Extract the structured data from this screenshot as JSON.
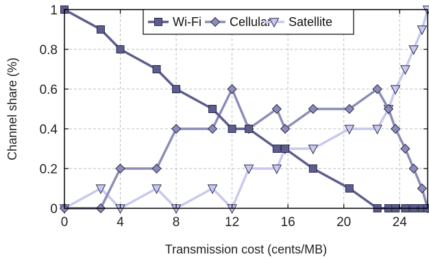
{
  "chart_data": {
    "type": "line",
    "xlabel": "Transmission cost (cents/MB)",
    "ylabel": "Channel share (%)",
    "xlim": [
      0,
      26
    ],
    "ylim": [
      0,
      1
    ],
    "xticks": [
      0,
      4,
      8,
      12,
      16,
      20,
      24
    ],
    "yticks": [
      0,
      0.2,
      0.4,
      0.6,
      0.8,
      1
    ],
    "grid": true,
    "legend": "top-center",
    "series": [
      {
        "name": "Wi-Fi",
        "marker": "square",
        "color": "#5c5c8e",
        "x": [
          0,
          2.6,
          4,
          6.6,
          8,
          10.6,
          12,
          13.2,
          15.2,
          15.8,
          17.8,
          20.4,
          22.4,
          23.2,
          23.7,
          24.4,
          25,
          25.6,
          26
        ],
        "y": [
          1,
          0.9,
          0.8,
          0.7,
          0.6,
          0.5,
          0.4,
          0.4,
          0.3,
          0.3,
          0.2,
          0.1,
          0,
          0,
          0,
          0,
          0,
          0,
          0
        ]
      },
      {
        "name": "Cellular",
        "marker": "diamond",
        "color": "#8c8cb8",
        "x": [
          0,
          2.6,
          4,
          6.6,
          8,
          10.6,
          12,
          13.2,
          15.2,
          15.8,
          17.8,
          20.4,
          22.4,
          23.2,
          23.7,
          24.4,
          25,
          25.6,
          26
        ],
        "y": [
          0,
          0,
          0.2,
          0.2,
          0.4,
          0.4,
          0.6,
          0.4,
          0.5,
          0.4,
          0.5,
          0.5,
          0.6,
          0.5,
          0.4,
          0.3,
          0.2,
          0.1,
          0
        ]
      },
      {
        "name": "Satellite",
        "marker": "triangle-down",
        "color": "#c8c8f0",
        "x": [
          0,
          2.6,
          4,
          6.6,
          8,
          10.6,
          12,
          13.2,
          15.2,
          15.8,
          17.8,
          20.4,
          22.4,
          23.2,
          23.7,
          24.4,
          25,
          25.6,
          26
        ],
        "y": [
          0,
          0.1,
          0,
          0.1,
          0,
          0.1,
          0,
          0.2,
          0.2,
          0.3,
          0.3,
          0.4,
          0.4,
          0.5,
          0.6,
          0.7,
          0.8,
          0.9,
          1
        ]
      }
    ]
  }
}
